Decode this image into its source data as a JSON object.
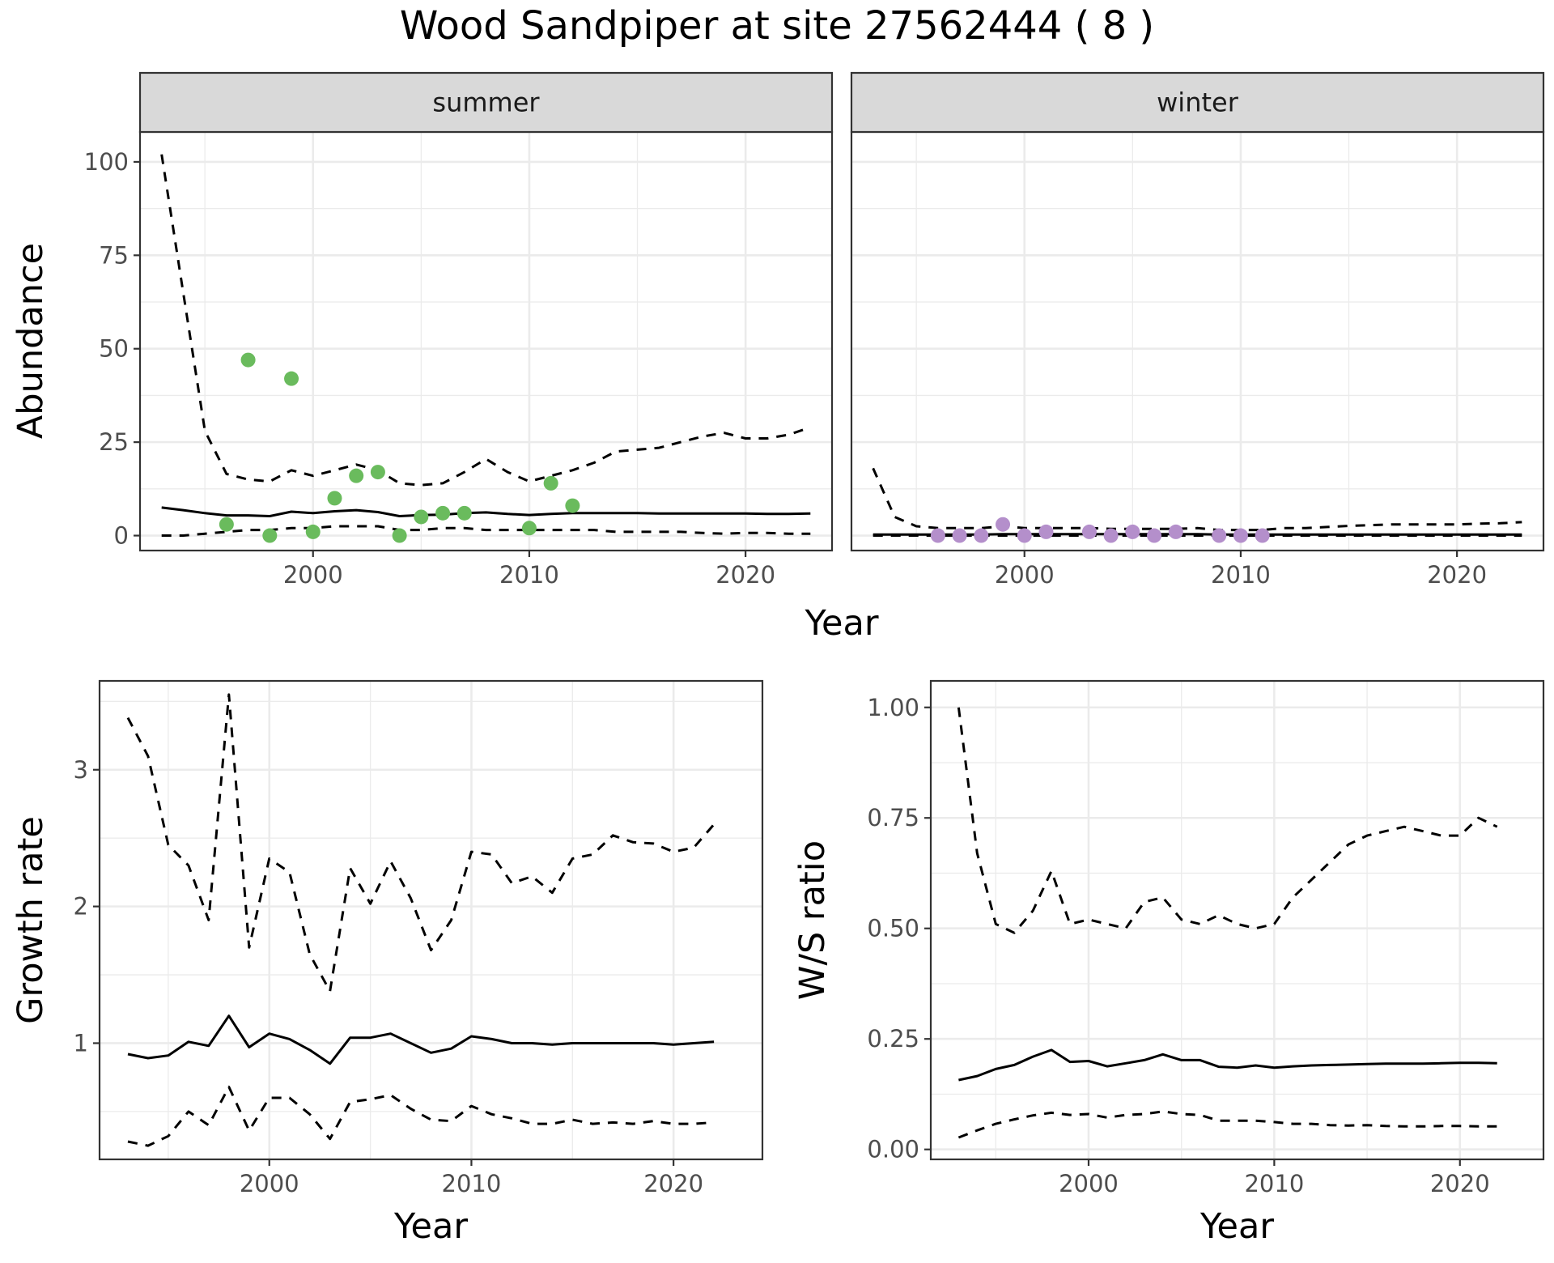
{
  "title": "Wood Sandpiper at site 27562444 ( 8 )",
  "chart_data": [
    {
      "type": "line",
      "facet": "summer",
      "xlabel": "Year",
      "ylabel": "Abundance",
      "xlim": [
        1992,
        2024
      ],
      "ylim": [
        -4,
        108
      ],
      "xticks": [
        2000,
        2010,
        2020
      ],
      "yticks": [
        0,
        25,
        50,
        75,
        100
      ],
      "grid": true,
      "points_color": "#6abb5d",
      "x": [
        1993,
        1994,
        1995,
        1996,
        1997,
        1998,
        1999,
        2000,
        2001,
        2002,
        2003,
        2004,
        2005,
        2006,
        2007,
        2008,
        2009,
        2010,
        2011,
        2012,
        2013,
        2014,
        2015,
        2016,
        2017,
        2018,
        2019,
        2020,
        2021,
        2022,
        2023
      ],
      "series": [
        {
          "style": "solid",
          "values": [
            7.5,
            6.8,
            6.0,
            5.4,
            5.4,
            5.2,
            6.4,
            6.0,
            6.5,
            6.8,
            6.3,
            5.2,
            5.5,
            5.6,
            6.0,
            6.2,
            5.8,
            5.5,
            5.8,
            6.0,
            6.0,
            6.0,
            6.0,
            5.9,
            5.9,
            5.9,
            5.9,
            5.9,
            5.8,
            5.8,
            5.9
          ]
        },
        {
          "style": "dashed",
          "values": [
            102,
            65,
            28,
            16.5,
            15,
            14.5,
            17.5,
            16,
            17.5,
            19,
            17.5,
            14,
            13.5,
            14,
            17,
            20.5,
            17,
            14.5,
            16,
            17.5,
            19.5,
            22.5,
            23,
            23.5,
            25,
            26.5,
            27.5,
            26,
            26,
            27,
            29
          ]
        },
        {
          "style": "dashed",
          "values": [
            0,
            0,
            0.5,
            1.0,
            1.5,
            1.5,
            2.0,
            2.0,
            2.5,
            2.5,
            2.5,
            1.5,
            1.5,
            2.0,
            2.0,
            1.5,
            1.5,
            1.5,
            1.5,
            1.5,
            1.5,
            1.0,
            1.0,
            1.0,
            1.0,
            0.7,
            0.5,
            0.7,
            0.7,
            0.5,
            0.5
          ]
        }
      ],
      "points": {
        "x": [
          1996,
          1997,
          1998,
          1999,
          2000,
          2001,
          2002,
          2003,
          2004,
          2005,
          2006,
          2007,
          2010,
          2011,
          2012
        ],
        "y": [
          3,
          47,
          0,
          42,
          1,
          10,
          16,
          17,
          0,
          5,
          6,
          6,
          2,
          14,
          8
        ]
      }
    },
    {
      "type": "line",
      "facet": "winter",
      "xlabel": "Year",
      "ylabel": "Abundance",
      "xlim": [
        1992,
        2024
      ],
      "ylim": [
        -4,
        108
      ],
      "xticks": [
        2000,
        2010,
        2020
      ],
      "yticks": [
        0,
        25,
        50,
        75,
        100
      ],
      "grid": true,
      "points_color": "#b48fcb",
      "x": [
        1993,
        1994,
        1995,
        1996,
        1997,
        1998,
        1999,
        2000,
        2001,
        2002,
        2003,
        2004,
        2005,
        2006,
        2007,
        2008,
        2009,
        2010,
        2011,
        2012,
        2013,
        2014,
        2015,
        2016,
        2017,
        2018,
        2019,
        2020,
        2021,
        2022,
        2023
      ],
      "series": [
        {
          "style": "solid",
          "values": [
            0.3,
            0.3,
            0.3,
            0.3,
            0.3,
            0.3,
            0.4,
            0.4,
            0.4,
            0.4,
            0.4,
            0.4,
            0.4,
            0.4,
            0.4,
            0.4,
            0.3,
            0.3,
            0.3,
            0.3,
            0.3,
            0.3,
            0.3,
            0.3,
            0.3,
            0.3,
            0.3,
            0.3,
            0.3,
            0.3,
            0.3
          ]
        },
        {
          "style": "dashed",
          "values": [
            18,
            5,
            2.5,
            2,
            2,
            2,
            2.5,
            2,
            2,
            2,
            2,
            1.8,
            1.8,
            1.8,
            1.8,
            2,
            1.5,
            1.5,
            1.5,
            2,
            2,
            2.3,
            2.6,
            2.8,
            3,
            3,
            3,
            3,
            3.2,
            3.3,
            3.6
          ]
        },
        {
          "style": "dashed",
          "values": [
            0,
            0,
            0,
            0,
            0,
            0,
            0,
            0,
            0,
            0,
            0,
            0,
            0,
            0,
            0,
            0,
            0,
            0,
            0,
            0,
            0,
            0,
            0,
            0,
            0,
            0,
            0,
            0,
            0,
            0,
            0
          ]
        }
      ],
      "points": {
        "x": [
          1996,
          1997,
          1998,
          1999,
          2000,
          2001,
          2003,
          2004,
          2005,
          2006,
          2007,
          2009,
          2010,
          2011
        ],
        "y": [
          0,
          0,
          0,
          3,
          0,
          1,
          1,
          0,
          1,
          0,
          1,
          0,
          0,
          0
        ]
      }
    },
    {
      "type": "line",
      "xlabel": "Year",
      "ylabel": "Growth rate",
      "xlim": [
        1991.6,
        2024.4
      ],
      "ylim": [
        0.15,
        3.65
      ],
      "xticks": [
        2000,
        2010,
        2020
      ],
      "yticks": [
        1,
        2,
        3
      ],
      "grid": true,
      "x": [
        1993,
        1994,
        1995,
        1996,
        1997,
        1998,
        1999,
        2000,
        2001,
        2002,
        2003,
        2004,
        2005,
        2006,
        2007,
        2008,
        2009,
        2010,
        2011,
        2012,
        2013,
        2014,
        2015,
        2016,
        2017,
        2018,
        2019,
        2020,
        2021,
        2022
      ],
      "series": [
        {
          "style": "solid",
          "values": [
            0.92,
            0.89,
            0.91,
            1.01,
            0.98,
            1.2,
            0.97,
            1.07,
            1.03,
            0.95,
            0.85,
            1.04,
            1.04,
            1.07,
            1.0,
            0.93,
            0.96,
            1.05,
            1.03,
            1.0,
            1.0,
            0.99,
            1.0,
            1.0,
            1.0,
            1.0,
            1.0,
            0.99,
            1.0,
            1.01
          ]
        },
        {
          "style": "dashed",
          "values": [
            3.38,
            3.1,
            2.45,
            2.3,
            1.9,
            3.55,
            1.7,
            2.35,
            2.25,
            1.65,
            1.38,
            2.28,
            2.02,
            2.33,
            2.06,
            1.68,
            1.9,
            2.4,
            2.38,
            2.17,
            2.22,
            2.1,
            2.35,
            2.38,
            2.52,
            2.47,
            2.46,
            2.4,
            2.43,
            2.6
          ]
        },
        {
          "style": "dashed",
          "values": [
            0.28,
            0.25,
            0.32,
            0.5,
            0.4,
            0.68,
            0.36,
            0.6,
            0.6,
            0.48,
            0.3,
            0.57,
            0.59,
            0.62,
            0.52,
            0.44,
            0.43,
            0.54,
            0.48,
            0.45,
            0.41,
            0.41,
            0.44,
            0.41,
            0.42,
            0.41,
            0.43,
            0.41,
            0.41,
            0.42
          ]
        }
      ]
    },
    {
      "type": "line",
      "xlabel": "Year",
      "ylabel": "W/S ratio",
      "xlim": [
        1991.5,
        2024.5
      ],
      "ylim": [
        -0.0225,
        1.06
      ],
      "xticks": [
        2000,
        2010,
        2020
      ],
      "yticks": [
        0.0,
        0.25,
        0.5,
        0.75,
        1.0
      ],
      "ytick_labels": [
        "0.00",
        "0.25",
        "0.50",
        "0.75",
        "1.00"
      ],
      "grid": true,
      "x": [
        1993,
        1994,
        1995,
        1996,
        1997,
        1998,
        1999,
        2000,
        2001,
        2002,
        2003,
        2004,
        2005,
        2006,
        2007,
        2008,
        2009,
        2010,
        2011,
        2012,
        2013,
        2014,
        2015,
        2016,
        2017,
        2018,
        2019,
        2020,
        2021,
        2022
      ],
      "series": [
        {
          "style": "solid",
          "values": [
            0.157,
            0.166,
            0.182,
            0.191,
            0.21,
            0.225,
            0.198,
            0.2,
            0.188,
            0.195,
            0.202,
            0.215,
            0.202,
            0.202,
            0.187,
            0.185,
            0.19,
            0.185,
            0.188,
            0.19,
            0.191,
            0.192,
            0.193,
            0.194,
            0.194,
            0.194,
            0.195,
            0.196,
            0.196,
            0.195
          ]
        },
        {
          "style": "dashed",
          "values": [
            1.0,
            0.67,
            0.51,
            0.49,
            0.54,
            0.63,
            0.51,
            0.52,
            0.51,
            0.5,
            0.56,
            0.57,
            0.52,
            0.51,
            0.53,
            0.51,
            0.5,
            0.51,
            0.57,
            0.61,
            0.65,
            0.69,
            0.71,
            0.72,
            0.73,
            0.72,
            0.71,
            0.71,
            0.75,
            0.73
          ]
        },
        {
          "style": "dashed",
          "values": [
            0.027,
            0.043,
            0.058,
            0.068,
            0.077,
            0.083,
            0.078,
            0.08,
            0.072,
            0.078,
            0.08,
            0.086,
            0.08,
            0.078,
            0.065,
            0.065,
            0.065,
            0.062,
            0.058,
            0.058,
            0.055,
            0.054,
            0.055,
            0.053,
            0.052,
            0.052,
            0.053,
            0.053,
            0.052,
            0.052
          ]
        }
      ]
    }
  ]
}
